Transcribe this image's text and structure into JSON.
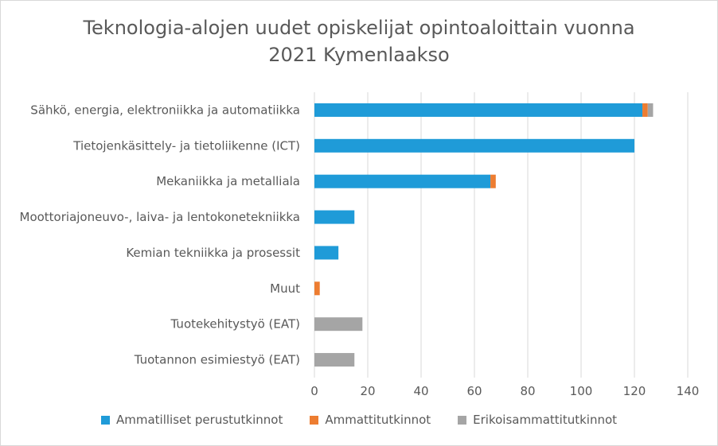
{
  "chart_data": {
    "type": "bar",
    "orientation": "horizontal",
    "stacked": true,
    "title": "Teknologia-alojen uudet opiskelijat opintoaloittain vuonna 2021 Kymenlaakso",
    "title_lines": [
      "Teknologia-alojen uudet opiskelijat opintoaloittain vuonna",
      "2021 Kymenlaakso"
    ],
    "categories": [
      "Sähkö, energia, elektroniikka ja automatiikka",
      "Tietojenkäsittely- ja tietoliikenne (ICT)",
      "Mekaniikka ja metalliala",
      "Moottoriajoneuvo-, laiva- ja lentokonetekniikka",
      "Kemian tekniikka ja prosessit",
      "Muut",
      "Tuotekehitystyö (EAT)",
      "Tuotannon esimiestyö (EAT)"
    ],
    "series": [
      {
        "name": "Ammatilliset perustutkinnot",
        "color": "#1f9bd8",
        "values": [
          123,
          120,
          66,
          15,
          9,
          0,
          0,
          0
        ]
      },
      {
        "name": "Ammattitutkinnot",
        "color": "#ed7d31",
        "values": [
          2,
          0,
          2,
          0,
          0,
          2,
          0,
          0
        ]
      },
      {
        "name": "Erikoisammattitutkinnot",
        "color": "#a5a5a5",
        "values": [
          2,
          0,
          0,
          0,
          0,
          0,
          18,
          15
        ]
      }
    ],
    "xlim": [
      0,
      140
    ],
    "xticks": [
      0,
      20,
      40,
      60,
      80,
      100,
      120,
      140
    ],
    "grid": true,
    "legend_position": "bottom"
  }
}
